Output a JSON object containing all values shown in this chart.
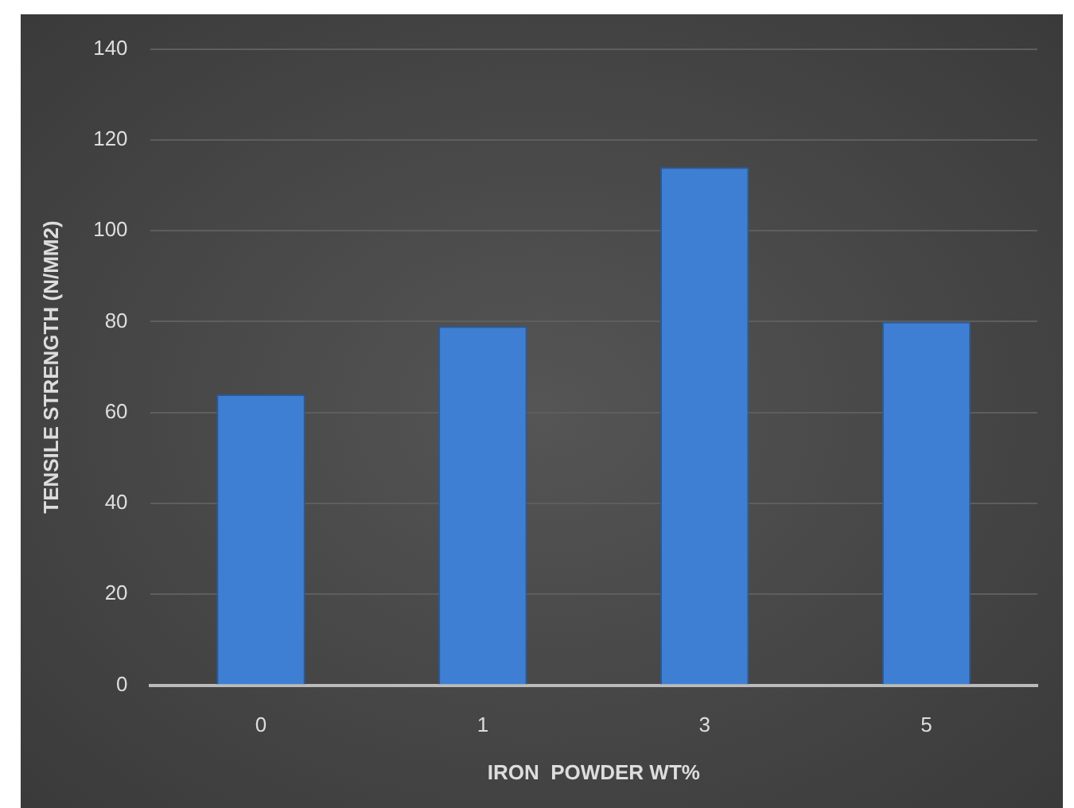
{
  "chart_data": {
    "type": "bar",
    "xlabel": "IRON  POWDER WT%",
    "ylabel": "TENSILE STRENGTH (N/MM2)",
    "categories": [
      "0",
      "1",
      "3",
      "5"
    ],
    "values": [
      64,
      79,
      114,
      80
    ],
    "color": "#3f7fd3",
    "ylim": [
      0,
      140
    ],
    "yticks": [
      0,
      20,
      40,
      60,
      80,
      100,
      120,
      140
    ],
    "grid": "y"
  }
}
